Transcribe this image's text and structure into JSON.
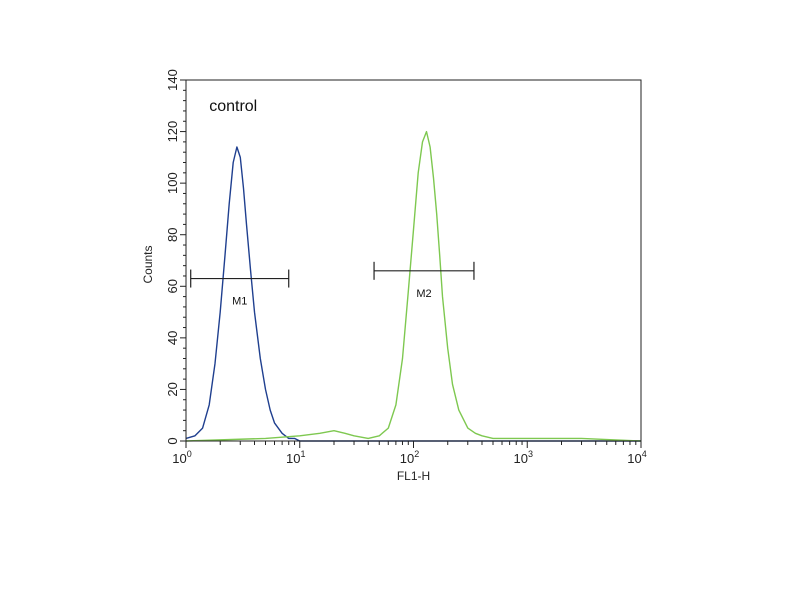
{
  "chart_data": {
    "type": "line",
    "title": "",
    "xlabel": "FL1-H",
    "ylabel": "Counts",
    "x_scale": "log",
    "xlim": [
      1,
      10000
    ],
    "ylim": [
      0,
      140
    ],
    "grid": false,
    "x_ticks": [
      {
        "base": "10",
        "exp": "0",
        "value": 1
      },
      {
        "base": "10",
        "exp": "1",
        "value": 10
      },
      {
        "base": "10",
        "exp": "2",
        "value": 100
      },
      {
        "base": "10",
        "exp": "3",
        "value": 1000
      },
      {
        "base": "10",
        "exp": "4",
        "value": 10000
      }
    ],
    "y_ticks": [
      "0",
      "20",
      "40",
      "60",
      "80",
      "100",
      "120",
      "140"
    ],
    "annotations": [
      {
        "text": "control",
        "x": 1.6,
        "y": 128
      }
    ],
    "markers": [
      {
        "label": "M1",
        "x_start": 1.1,
        "x_end": 8.0,
        "y": 63
      },
      {
        "label": "M2",
        "x_start": 45,
        "x_end": 340,
        "y": 66
      }
    ],
    "series": [
      {
        "color": "#1f3f8f",
        "x": [
          1,
          1.2,
          1.4,
          1.6,
          1.8,
          2.0,
          2.2,
          2.4,
          2.6,
          2.8,
          3.0,
          3.2,
          3.4,
          3.7,
          4.0,
          4.5,
          5.0,
          5.5,
          6.0,
          7.0,
          8.0,
          9.0,
          10,
          20,
          100,
          1000,
          10000
        ],
        "y": [
          1,
          2,
          5,
          14,
          30,
          50,
          72,
          92,
          108,
          114,
          110,
          98,
          84,
          66,
          50,
          32,
          20,
          12,
          7,
          3,
          1,
          1,
          0,
          0,
          0,
          0,
          0
        ]
      },
      {
        "color": "#7ec850",
        "x": [
          1,
          5,
          10,
          15,
          20,
          25,
          30,
          40,
          50,
          60,
          70,
          80,
          90,
          100,
          110,
          120,
          130,
          140,
          150,
          160,
          170,
          180,
          200,
          220,
          250,
          300,
          350,
          400,
          500,
          1000,
          3000,
          10000
        ],
        "y": [
          0,
          1,
          2,
          3,
          4,
          3,
          2,
          1,
          2,
          5,
          14,
          32,
          58,
          82,
          104,
          116,
          120,
          114,
          102,
          88,
          72,
          56,
          36,
          22,
          12,
          5,
          3,
          2,
          1,
          1,
          1,
          0
        ]
      }
    ]
  }
}
